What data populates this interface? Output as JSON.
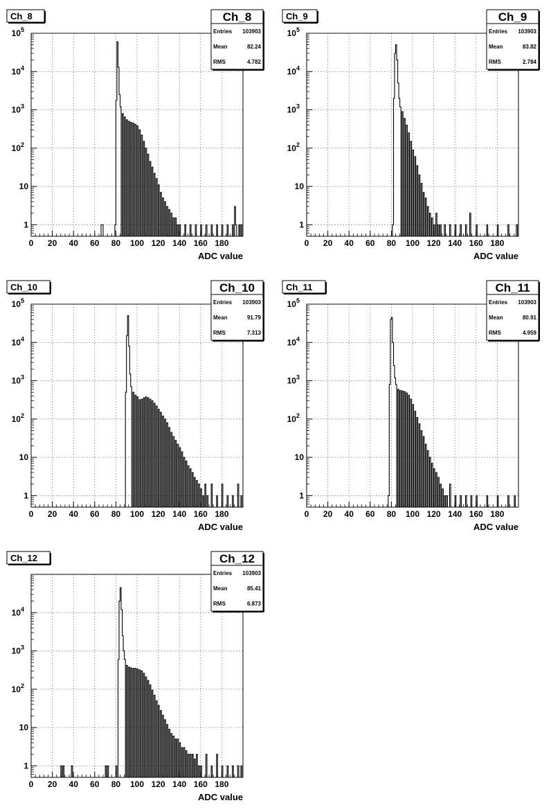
{
  "chart_data": [
    {
      "type": "histogram",
      "title": "Ch_8",
      "xlabel": "ADC value",
      "ylabel": "",
      "xlim": [
        0,
        200
      ],
      "xticks": [
        0,
        20,
        40,
        60,
        80,
        100,
        120,
        140,
        160,
        180
      ],
      "yscale": "log",
      "ylim": [
        0.5,
        100000
      ],
      "yticks": [
        {
          "value": 1,
          "label": "1"
        },
        {
          "value": 10,
          "label": "10"
        },
        {
          "value": 100,
          "label": "10",
          "exp": "2"
        },
        {
          "value": 1000,
          "label": "10",
          "exp": "3"
        },
        {
          "value": 10000,
          "label": "10",
          "exp": "4"
        },
        {
          "value": 100000,
          "label": "10",
          "exp": "5"
        }
      ],
      "grid": true,
      "stats": {
        "name": "Ch_8",
        "rows": [
          {
            "label": "Entries",
            "value": "103903"
          },
          {
            "label": "Mean",
            "value": "82.24"
          },
          {
            "label": "RMS",
            "value": "4.782"
          }
        ]
      },
      "points": [
        [
          66,
          1
        ],
        [
          67,
          1
        ],
        [
          79,
          1
        ],
        [
          80,
          1800
        ],
        [
          81,
          60000
        ],
        [
          82,
          13000
        ],
        [
          83,
          2500
        ],
        [
          84,
          1200
        ],
        [
          86,
          800
        ],
        [
          88,
          650
        ],
        [
          90,
          550
        ],
        [
          92,
          500
        ],
        [
          94,
          470
        ],
        [
          96,
          450
        ],
        [
          98,
          420
        ],
        [
          100,
          380
        ],
        [
          102,
          300
        ],
        [
          104,
          220
        ],
        [
          106,
          150
        ],
        [
          108,
          100
        ],
        [
          110,
          70
        ],
        [
          112,
          45
        ],
        [
          114,
          32
        ],
        [
          116,
          22
        ],
        [
          118,
          16
        ],
        [
          120,
          11
        ],
        [
          122,
          7
        ],
        [
          124,
          5
        ],
        [
          126,
          4
        ],
        [
          128,
          3
        ],
        [
          130,
          2.5
        ],
        [
          132,
          2
        ],
        [
          134,
          1.5
        ],
        [
          136,
          1.5
        ],
        [
          138,
          1
        ],
        [
          140,
          1
        ],
        [
          145,
          1
        ],
        [
          150,
          1
        ],
        [
          155,
          1
        ],
        [
          160,
          1
        ],
        [
          165,
          1
        ],
        [
          170,
          1
        ],
        [
          175,
          1
        ],
        [
          180,
          1
        ],
        [
          185,
          1
        ],
        [
          190,
          1
        ],
        [
          192,
          3
        ],
        [
          193,
          1
        ],
        [
          196,
          1
        ],
        [
          198,
          1
        ]
      ]
    },
    {
      "type": "histogram",
      "title": "Ch_9",
      "xlabel": "ADC value",
      "ylabel": "",
      "xlim": [
        0,
        200
      ],
      "xticks": [
        0,
        20,
        40,
        60,
        80,
        100,
        120,
        140,
        160,
        180
      ],
      "yscale": "log",
      "ylim": [
        0.5,
        100000
      ],
      "yticks": [
        {
          "value": 1,
          "label": "1"
        },
        {
          "value": 10,
          "label": "10"
        },
        {
          "value": 100,
          "label": "10",
          "exp": "2"
        },
        {
          "value": 1000,
          "label": "10",
          "exp": "3"
        },
        {
          "value": 10000,
          "label": "10",
          "exp": "4"
        },
        {
          "value": 100000,
          "label": "10",
          "exp": "5"
        }
      ],
      "grid": true,
      "stats": {
        "name": "Ch_9",
        "rows": [
          {
            "label": "Entries",
            "value": "103903"
          },
          {
            "label": "Mean",
            "value": "83.82"
          },
          {
            "label": "RMS",
            "value": "2.784"
          }
        ]
      },
      "points": [
        [
          81,
          1
        ],
        [
          82,
          2000
        ],
        [
          83,
          30000
        ],
        [
          84,
          50000
        ],
        [
          85,
          20000
        ],
        [
          86,
          5000
        ],
        [
          87,
          2000
        ],
        [
          88,
          1200
        ],
        [
          90,
          900
        ],
        [
          92,
          600
        ],
        [
          94,
          400
        ],
        [
          96,
          250
        ],
        [
          98,
          150
        ],
        [
          100,
          90
        ],
        [
          102,
          60
        ],
        [
          104,
          35
        ],
        [
          106,
          20
        ],
        [
          108,
          12
        ],
        [
          110,
          7
        ],
        [
          112,
          5
        ],
        [
          114,
          3
        ],
        [
          116,
          2
        ],
        [
          118,
          1.5
        ],
        [
          120,
          1
        ],
        [
          122,
          2
        ],
        [
          124,
          1
        ],
        [
          126,
          1
        ],
        [
          130,
          1
        ],
        [
          135,
          1
        ],
        [
          140,
          1
        ],
        [
          145,
          1
        ],
        [
          150,
          1
        ],
        [
          154,
          2
        ],
        [
          160,
          1
        ],
        [
          170,
          1
        ],
        [
          180,
          1
        ],
        [
          190,
          1
        ],
        [
          198,
          1
        ]
      ]
    },
    {
      "type": "histogram",
      "title": "Ch_10",
      "xlabel": "ADC value",
      "ylabel": "",
      "xlim": [
        0,
        200
      ],
      "xticks": [
        0,
        20,
        40,
        60,
        80,
        100,
        120,
        140,
        160,
        180
      ],
      "yscale": "log",
      "ylim": [
        0.5,
        100000
      ],
      "yticks": [
        {
          "value": 1,
          "label": "1"
        },
        {
          "value": 10,
          "label": "10"
        },
        {
          "value": 100,
          "label": "10",
          "exp": "2"
        },
        {
          "value": 1000,
          "label": "10",
          "exp": "3"
        },
        {
          "value": 10000,
          "label": "10",
          "exp": "4"
        },
        {
          "value": 100000,
          "label": "10",
          "exp": "5"
        }
      ],
      "grid": true,
      "stats": {
        "name": "Ch_10",
        "rows": [
          {
            "label": "Entries",
            "value": "103903"
          },
          {
            "label": "Mean",
            "value": "91.79"
          },
          {
            "label": "RMS",
            "value": "7.313"
          }
        ]
      },
      "points": [
        [
          89,
          500
        ],
        [
          90,
          15000
        ],
        [
          91,
          50000
        ],
        [
          92,
          8000
        ],
        [
          93,
          1500
        ],
        [
          94,
          700
        ],
        [
          96,
          500
        ],
        [
          98,
          420
        ],
        [
          100,
          380
        ],
        [
          102,
          320
        ],
        [
          104,
          330
        ],
        [
          106,
          360
        ],
        [
          108,
          380
        ],
        [
          110,
          360
        ],
        [
          112,
          330
        ],
        [
          114,
          300
        ],
        [
          116,
          260
        ],
        [
          118,
          220
        ],
        [
          120,
          180
        ],
        [
          122,
          150
        ],
        [
          124,
          120
        ],
        [
          126,
          100
        ],
        [
          128,
          80
        ],
        [
          130,
          60
        ],
        [
          132,
          45
        ],
        [
          134,
          35
        ],
        [
          136,
          28
        ],
        [
          138,
          22
        ],
        [
          140,
          18
        ],
        [
          142,
          14
        ],
        [
          144,
          10
        ],
        [
          146,
          8
        ],
        [
          148,
          6
        ],
        [
          150,
          5
        ],
        [
          152,
          4
        ],
        [
          154,
          3
        ],
        [
          156,
          2.5
        ],
        [
          158,
          2
        ],
        [
          160,
          1.5
        ],
        [
          162,
          1
        ],
        [
          164,
          2
        ],
        [
          166,
          1
        ],
        [
          170,
          2
        ],
        [
          175,
          1
        ],
        [
          180,
          2
        ],
        [
          185,
          1
        ],
        [
          190,
          1
        ],
        [
          195,
          2
        ],
        [
          198,
          1
        ]
      ]
    },
    {
      "type": "histogram",
      "title": "Ch_11",
      "xlabel": "ADC value",
      "ylabel": "",
      "xlim": [
        0,
        200
      ],
      "xticks": [
        0,
        20,
        40,
        60,
        80,
        100,
        120,
        140,
        160,
        180
      ],
      "yscale": "log",
      "ylim": [
        0.5,
        100000
      ],
      "yticks": [
        {
          "value": 1,
          "label": "1"
        },
        {
          "value": 10,
          "label": "10"
        },
        {
          "value": 100,
          "label": "10",
          "exp": "2"
        },
        {
          "value": 1000,
          "label": "10",
          "exp": "3"
        },
        {
          "value": 10000,
          "label": "10",
          "exp": "4"
        },
        {
          "value": 100000,
          "label": "10",
          "exp": "5"
        }
      ],
      "grid": true,
      "stats": {
        "name": "Ch_11",
        "rows": [
          {
            "label": "Entries",
            "value": "103903"
          },
          {
            "label": "Mean",
            "value": "80.91"
          },
          {
            "label": "RMS",
            "value": "4.959"
          }
        ]
      },
      "points": [
        [
          77,
          1
        ],
        [
          78,
          800
        ],
        [
          79,
          40000
        ],
        [
          80,
          45000
        ],
        [
          81,
          10000
        ],
        [
          82,
          2500
        ],
        [
          83,
          1200
        ],
        [
          84,
          800
        ],
        [
          86,
          600
        ],
        [
          88,
          560
        ],
        [
          90,
          540
        ],
        [
          92,
          520
        ],
        [
          94,
          480
        ],
        [
          96,
          420
        ],
        [
          98,
          330
        ],
        [
          100,
          240
        ],
        [
          102,
          160
        ],
        [
          104,
          110
        ],
        [
          106,
          75
        ],
        [
          108,
          50
        ],
        [
          110,
          35
        ],
        [
          112,
          22
        ],
        [
          114,
          15
        ],
        [
          116,
          10
        ],
        [
          118,
          7
        ],
        [
          120,
          5
        ],
        [
          122,
          4
        ],
        [
          124,
          3
        ],
        [
          126,
          2
        ],
        [
          128,
          1.5
        ],
        [
          130,
          1
        ],
        [
          132,
          1
        ],
        [
          135,
          2
        ],
        [
          140,
          1
        ],
        [
          145,
          1
        ],
        [
          150,
          1
        ],
        [
          155,
          1
        ],
        [
          160,
          1
        ],
        [
          170,
          1
        ],
        [
          180,
          1
        ],
        [
          190,
          1
        ],
        [
          196,
          1
        ]
      ]
    },
    {
      "type": "histogram",
      "title": "Ch_12",
      "xlabel": "ADC value",
      "ylabel": "",
      "xlim": [
        0,
        200
      ],
      "xticks": [
        0,
        20,
        40,
        60,
        80,
        100,
        120,
        140,
        160,
        180
      ],
      "yscale": "log",
      "ylim": [
        0.5,
        100000
      ],
      "yticks": [
        {
          "value": 1,
          "label": "1"
        },
        {
          "value": 10,
          "label": "10"
        },
        {
          "value": 100,
          "label": "10",
          "exp": "2"
        },
        {
          "value": 1000,
          "label": "10",
          "exp": "3"
        },
        {
          "value": 10000,
          "label": "10",
          "exp": "4"
        }
      ],
      "grid": true,
      "stats": {
        "name": "Ch_12",
        "rows": [
          {
            "label": "Entries",
            "value": "103903"
          },
          {
            "label": "Mean",
            "value": "85.41"
          },
          {
            "label": "RMS",
            "value": "6.873"
          }
        ]
      },
      "points": [
        [
          28,
          1
        ],
        [
          30,
          1
        ],
        [
          38,
          1
        ],
        [
          70,
          1
        ],
        [
          72,
          1
        ],
        [
          80,
          1
        ],
        [
          82,
          600
        ],
        [
          83,
          20000
        ],
        [
          84,
          45000
        ],
        [
          85,
          12000
        ],
        [
          86,
          2500
        ],
        [
          87,
          1000
        ],
        [
          88,
          600
        ],
        [
          90,
          420
        ],
        [
          92,
          380
        ],
        [
          94,
          360
        ],
        [
          96,
          350
        ],
        [
          98,
          350
        ],
        [
          100,
          340
        ],
        [
          102,
          320
        ],
        [
          104,
          300
        ],
        [
          106,
          260
        ],
        [
          108,
          210
        ],
        [
          110,
          170
        ],
        [
          112,
          130
        ],
        [
          114,
          95
        ],
        [
          116,
          70
        ],
        [
          118,
          50
        ],
        [
          120,
          38
        ],
        [
          122,
          28
        ],
        [
          124,
          21
        ],
        [
          126,
          16
        ],
        [
          128,
          12
        ],
        [
          130,
          9
        ],
        [
          132,
          7
        ],
        [
          134,
          6
        ],
        [
          136,
          5
        ],
        [
          138,
          5
        ],
        [
          140,
          4
        ],
        [
          142,
          3
        ],
        [
          144,
          3
        ],
        [
          146,
          2.5
        ],
        [
          148,
          2
        ],
        [
          150,
          2
        ],
        [
          152,
          2
        ],
        [
          154,
          1.5
        ],
        [
          156,
          2
        ],
        [
          158,
          1
        ],
        [
          160,
          1
        ],
        [
          165,
          2
        ],
        [
          170,
          1
        ],
        [
          175,
          2
        ],
        [
          180,
          1
        ],
        [
          185,
          1
        ],
        [
          190,
          1
        ],
        [
          195,
          1
        ],
        [
          198,
          1
        ]
      ]
    }
  ]
}
